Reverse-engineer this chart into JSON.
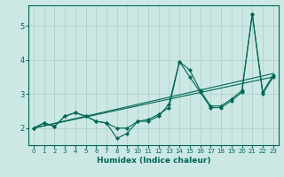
{
  "xlabel": "Humidex (Indice chaleur)",
  "background_color": "#cce8e4",
  "grid_color": "#aaccc8",
  "line_color": "#006655",
  "xlim": [
    -0.5,
    23.5
  ],
  "ylim": [
    1.5,
    5.6
  ],
  "yticks": [
    2,
    3,
    4,
    5
  ],
  "xticks": [
    0,
    1,
    2,
    3,
    4,
    5,
    6,
    7,
    8,
    9,
    10,
    11,
    12,
    13,
    14,
    15,
    16,
    17,
    18,
    19,
    20,
    21,
    22,
    23
  ],
  "series": {
    "line1": {
      "x": [
        0,
        1,
        2,
        3,
        4,
        5,
        6,
        7,
        8,
        9,
        10,
        11,
        12,
        13,
        14,
        15,
        16,
        17,
        18,
        19,
        20,
        21,
        22,
        23
      ],
      "y": [
        2.0,
        2.15,
        2.05,
        2.35,
        2.45,
        2.35,
        2.2,
        2.15,
        1.7,
        1.85,
        2.2,
        2.2,
        2.35,
        2.7,
        3.95,
        3.5,
        3.05,
        2.6,
        2.6,
        2.8,
        3.05,
        5.35,
        3.0,
        3.5
      ]
    },
    "line2": {
      "x": [
        0,
        1,
        2,
        3,
        4,
        5,
        6,
        7,
        8,
        9,
        10,
        11,
        12,
        13,
        14,
        15,
        16,
        17,
        18,
        19,
        20,
        21,
        22,
        23
      ],
      "y": [
        2.0,
        2.15,
        2.05,
        2.35,
        2.45,
        2.35,
        2.2,
        2.15,
        2.0,
        2.0,
        2.2,
        2.25,
        2.4,
        2.6,
        3.95,
        3.7,
        3.1,
        2.65,
        2.65,
        2.85,
        3.1,
        5.35,
        3.05,
        3.55
      ]
    },
    "line3": {
      "x": [
        0,
        23
      ],
      "y": [
        2.0,
        3.5
      ]
    },
    "line4": {
      "x": [
        0,
        23
      ],
      "y": [
        2.0,
        3.6
      ]
    }
  }
}
